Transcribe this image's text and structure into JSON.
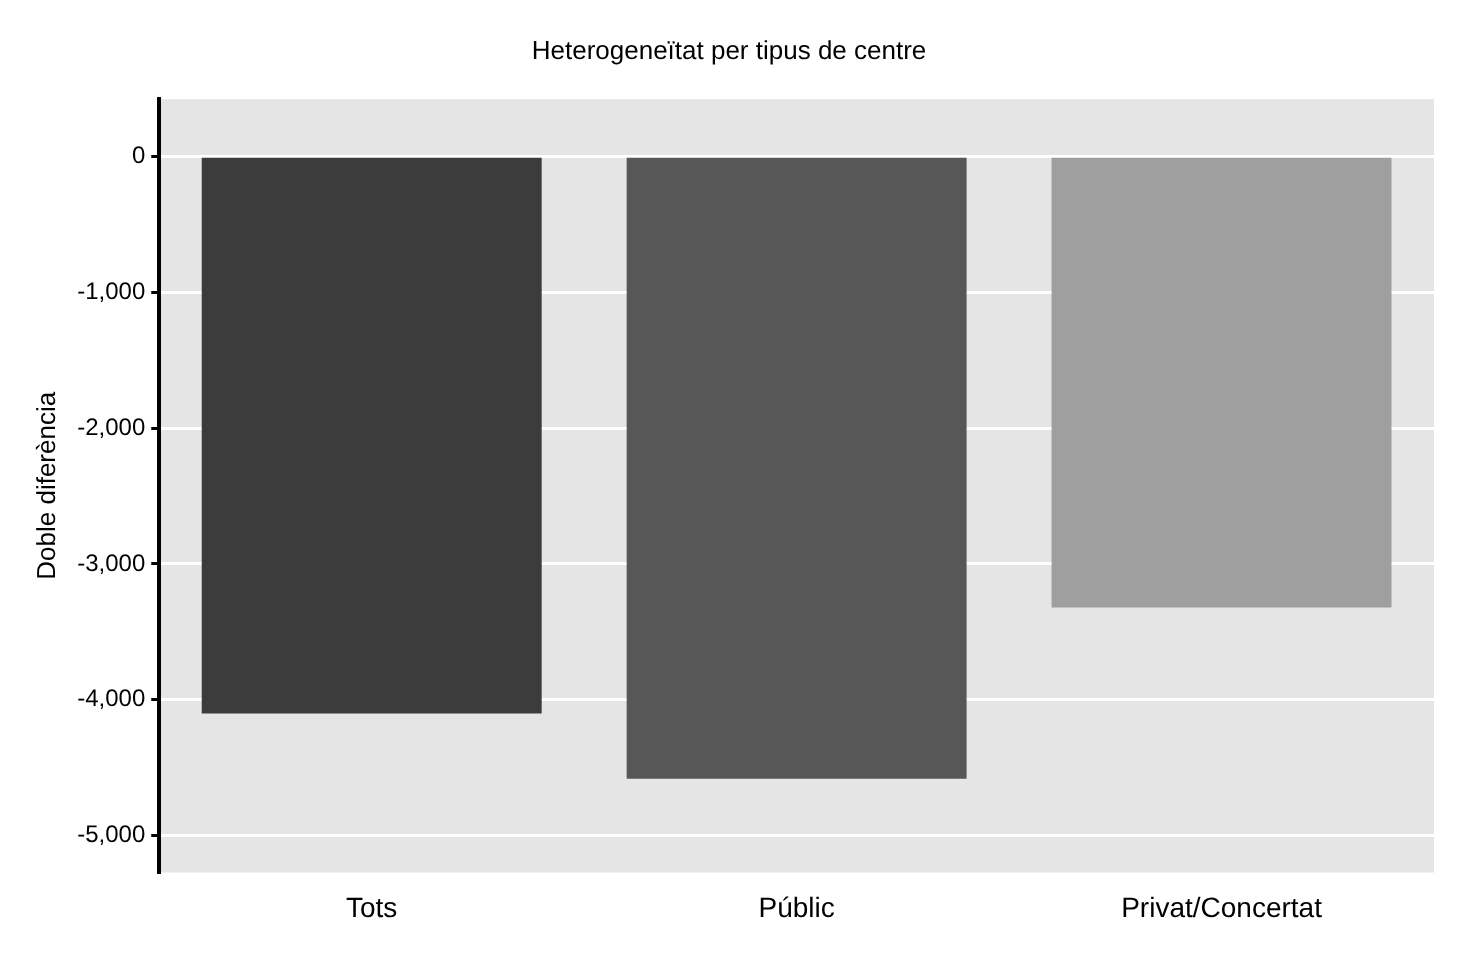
{
  "chart_data": {
    "type": "bar",
    "title": "Heterogeneïtat per tipus de centre",
    "ylabel": "Doble diferència",
    "categories": [
      "Tots",
      "Públic",
      "Privat/Concertat"
    ],
    "values": [
      -4100,
      -4580,
      -3320
    ],
    "colors": [
      "#3c3c3c",
      "#575757",
      "#9f9f9f"
    ],
    "ylim": [
      -5270,
      420
    ],
    "yticks": [
      {
        "value": -5000,
        "label": "-5,000"
      },
      {
        "value": -4000,
        "label": "-4,000"
      },
      {
        "value": -3000,
        "label": "-3,000"
      },
      {
        "value": -2000,
        "label": "-2,000"
      },
      {
        "value": -1000,
        "label": "-1,000"
      },
      {
        "value": 0,
        "label": "0"
      }
    ],
    "grid": "y"
  }
}
